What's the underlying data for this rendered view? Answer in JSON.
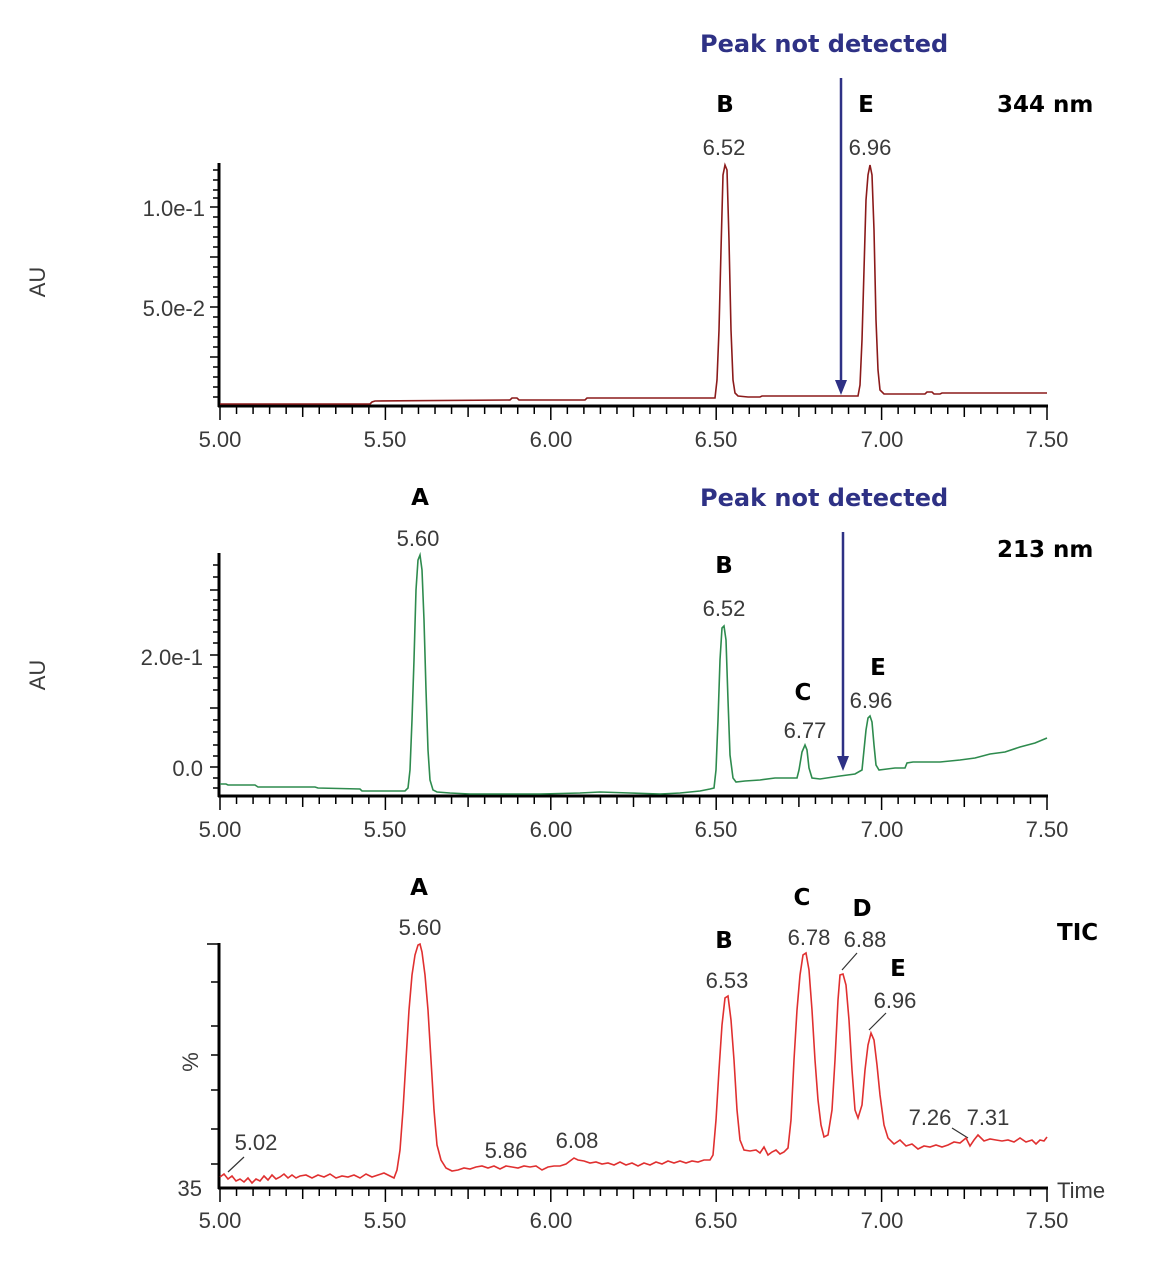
{
  "chart_data": [
    {
      "type": "line",
      "title": "344 nm",
      "xlabel": "",
      "ylabel": "AU",
      "xlim": [
        5.0,
        7.5
      ],
      "ylim": [
        -0.002,
        0.124
      ],
      "x_ticks": [
        "5.00",
        "5.50",
        "6.00",
        "6.50",
        "7.00",
        "7.50"
      ],
      "y_ticks": [
        "5.0e-2",
        "1.0e-1"
      ],
      "color": "#8b1a1a",
      "peaks": [
        {
          "letter": "B",
          "rt": "6.52",
          "x": 6.52,
          "height": 0.12
        },
        {
          "letter": "E",
          "rt": "6.96",
          "x": 6.96,
          "height": 0.12
        }
      ],
      "annotation": {
        "text": "Peak not detected",
        "x": 6.88
      },
      "series": [
        {
          "name": "344 nm",
          "x": [
            5.0,
            5.45,
            5.46,
            5.5,
            5.88,
            5.9,
            6.12,
            6.5,
            6.51,
            6.52,
            6.53,
            6.56,
            6.6,
            6.66,
            6.9,
            6.94,
            6.96,
            6.98,
            7.0,
            7.02,
            7.15,
            7.2,
            7.5
          ],
          "y": [
            0.0,
            0.0,
            0.002,
            0.002,
            0.003,
            0.002,
            0.004,
            0.004,
            0.08,
            0.12,
            0.09,
            0.008,
            0.004,
            0.005,
            0.005,
            0.06,
            0.12,
            0.06,
            0.008,
            0.006,
            0.006,
            0.007,
            0.007
          ]
        }
      ],
      "grid": false,
      "legend": "none"
    },
    {
      "type": "line",
      "title": "213 nm",
      "xlabel": "",
      "ylabel": "AU",
      "xlim": [
        5.0,
        7.5
      ],
      "ylim": [
        -0.05,
        0.37
      ],
      "x_ticks": [
        "5.00",
        "5.50",
        "6.00",
        "6.50",
        "7.00",
        "7.50"
      ],
      "y_ticks": [
        "0.0",
        "2.0e-1"
      ],
      "color": "#2e8b4e",
      "peaks": [
        {
          "letter": "A",
          "rt": "5.60",
          "x": 5.6,
          "height": 0.36
        },
        {
          "letter": "B",
          "rt": "6.52",
          "x": 6.52,
          "height": 0.24
        },
        {
          "letter": "C",
          "rt": "6.77",
          "x": 6.77,
          "height": 0.04
        },
        {
          "letter": "E",
          "rt": "6.96",
          "x": 6.96,
          "height": 0.09
        }
      ],
      "annotation": {
        "text": "Peak not detected",
        "x": 6.88
      },
      "series": [
        {
          "name": "213 nm",
          "x": [
            5.0,
            5.2,
            5.4,
            5.55,
            5.58,
            5.6,
            5.62,
            5.66,
            5.8,
            6.0,
            6.3,
            6.48,
            6.51,
            6.52,
            6.54,
            6.57,
            6.7,
            6.75,
            6.77,
            6.79,
            6.82,
            6.9,
            6.94,
            6.96,
            6.98,
            7.0,
            7.1,
            7.3,
            7.5
          ],
          "y": [
            -0.025,
            -0.03,
            -0.035,
            -0.035,
            0.2,
            0.36,
            0.2,
            -0.04,
            -0.04,
            -0.04,
            -0.035,
            -0.015,
            0.15,
            0.24,
            0.1,
            -0.01,
            0.0,
            0.02,
            0.04,
            0.02,
            0.0,
            0.01,
            0.05,
            0.09,
            0.05,
            0.02,
            0.03,
            0.04,
            0.07
          ]
        }
      ],
      "grid": false,
      "legend": "none"
    },
    {
      "type": "line",
      "title": "TIC",
      "xlabel": "Time",
      "ylabel": "%",
      "xlim": [
        5.0,
        7.5
      ],
      "ylim": [
        35,
        100
      ],
      "x_ticks": [
        "5.00",
        "5.50",
        "6.00",
        "6.50",
        "7.00",
        "7.50"
      ],
      "y_ticks": [
        "35"
      ],
      "color": "#e03030",
      "peaks": [
        {
          "letter": "",
          "rt": "5.02",
          "x": 5.02,
          "height": 37
        },
        {
          "letter": "A",
          "rt": "5.60",
          "x": 5.6,
          "height": 100
        },
        {
          "letter": "",
          "rt": "5.86",
          "x": 5.86,
          "height": 38
        },
        {
          "letter": "",
          "rt": "6.08",
          "x": 6.08,
          "height": 39
        },
        {
          "letter": "B",
          "rt": "6.53",
          "x": 6.53,
          "height": 82
        },
        {
          "letter": "C",
          "rt": "6.78",
          "x": 6.78,
          "height": 97
        },
        {
          "letter": "D",
          "rt": "6.88",
          "x": 6.88,
          "height": 91
        },
        {
          "letter": "E",
          "rt": "6.96",
          "x": 6.96,
          "height": 76
        },
        {
          "letter": "",
          "rt": "7.26",
          "x": 7.26,
          "height": 41
        },
        {
          "letter": "",
          "rt": "7.31",
          "x": 7.31,
          "height": 42
        }
      ],
      "grid": false,
      "legend": "none"
    }
  ],
  "panels": [
    {
      "label": "344 nm",
      "annotation": "Peak not detected",
      "ylabel": "AU",
      "y_ticks": [
        "1.0e-1",
        "5.0e-2"
      ],
      "x_ticks": [
        "5.00",
        "5.50",
        "6.00",
        "6.50",
        "7.00",
        "7.50"
      ],
      "peak_letters": [
        "B",
        "E"
      ],
      "peak_rts": [
        "6.52",
        "6.96"
      ]
    },
    {
      "label": "213 nm",
      "annotation": "Peak not detected",
      "ylabel": "AU",
      "y_ticks": [
        "2.0e-1",
        "0.0"
      ],
      "x_ticks": [
        "5.00",
        "5.50",
        "6.00",
        "6.50",
        "7.00",
        "7.50"
      ],
      "peak_letters": [
        "A",
        "B",
        "C",
        "E"
      ],
      "peak_rts": [
        "5.60",
        "6.52",
        "6.77",
        "6.96"
      ]
    },
    {
      "label": "TIC",
      "ylabel": "%",
      "xlabel": "Time",
      "y_ticks": [
        "35"
      ],
      "x_ticks": [
        "5.00",
        "5.50",
        "6.00",
        "6.50",
        "7.00",
        "7.50"
      ],
      "peak_letters": [
        "A",
        "B",
        "C",
        "D",
        "E"
      ],
      "peak_rts": [
        "5.02",
        "5.60",
        "5.86",
        "6.08",
        "6.53",
        "6.78",
        "6.88",
        "6.96",
        "7.26",
        "7.31"
      ]
    }
  ]
}
